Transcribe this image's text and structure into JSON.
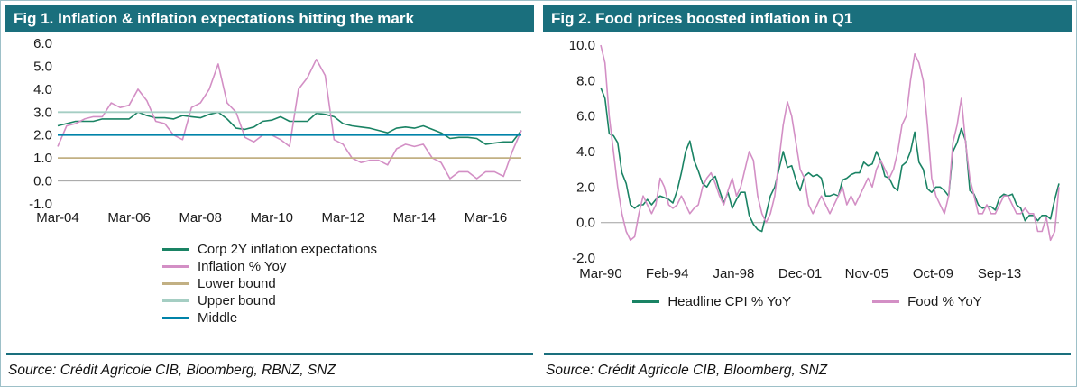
{
  "colors": {
    "header_bg": "#1a6f7d",
    "outer_border": "#9dc0c8",
    "zero_line": "#a0a0a0",
    "expectations_green": "#1a8364",
    "inflation_pink": "#d38fc5",
    "lower_bound_tan": "#c2b083",
    "upper_bound_lightgreen": "#a5cec3",
    "middle_blue": "#0083a9"
  },
  "panels": [
    {
      "title": "Fig 1. Inflation & inflation expectations hitting the mark",
      "source": "Source: Crédit Agricole CIB, Bloomberg, RBNZ, SNZ"
    },
    {
      "title": "Fig 2. Food prices boosted inflation in Q1",
      "source": "Source: Crédit Agricole CIB, Bloomberg, SNZ"
    }
  ],
  "chart_data": [
    {
      "type": "line",
      "title": "Fig 1. Inflation & inflation expectations hitting the mark",
      "xlabel": "",
      "ylabel": "",
      "grid": false,
      "zero_line": true,
      "legend_position": "bottom-vertical",
      "ylim": [
        -1.0,
        6.0
      ],
      "yticks": [
        "6.0",
        "5.0",
        "4.0",
        "3.0",
        "2.0",
        "1.0",
        "0.0",
        "-1.0"
      ],
      "n": 53,
      "x_frequency": "quarterly from Mar-04 to Mar-17",
      "xticks": [
        {
          "label": "Mar-04",
          "i": 0
        },
        {
          "label": "Mar-06",
          "i": 8
        },
        {
          "label": "Mar-08",
          "i": 16
        },
        {
          "label": "Mar-10",
          "i": 24
        },
        {
          "label": "Mar-12",
          "i": 32
        },
        {
          "label": "Mar-14",
          "i": 40
        },
        {
          "label": "Mar-16",
          "i": 48
        }
      ],
      "series": [
        {
          "name": "Corp 2Y inflation expectations",
          "color": "#1a8364",
          "values": [
            2.4,
            2.5,
            2.6,
            2.6,
            2.6,
            2.7,
            2.7,
            2.7,
            2.7,
            3.0,
            2.85,
            2.75,
            2.75,
            2.7,
            2.85,
            2.8,
            2.75,
            2.9,
            3.0,
            2.7,
            2.3,
            2.25,
            2.35,
            2.6,
            2.65,
            2.8,
            2.6,
            2.6,
            2.6,
            2.95,
            2.9,
            2.8,
            2.5,
            2.4,
            2.35,
            2.3,
            2.2,
            2.1,
            2.3,
            2.35,
            2.3,
            2.4,
            2.25,
            2.1,
            1.85,
            1.9,
            1.9,
            1.85,
            1.6,
            1.65,
            1.7,
            1.7,
            2.2
          ]
        },
        {
          "name": "Inflation % Yoy",
          "color": "#d38fc5",
          "values": [
            1.5,
            2.4,
            2.5,
            2.7,
            2.8,
            2.8,
            3.4,
            3.2,
            3.3,
            4.0,
            3.5,
            2.6,
            2.5,
            2.0,
            1.8,
            3.2,
            3.4,
            4.0,
            5.1,
            3.4,
            3.0,
            1.9,
            1.7,
            2.0,
            2.0,
            1.8,
            1.5,
            4.0,
            4.5,
            5.3,
            4.6,
            1.8,
            1.6,
            1.0,
            0.8,
            0.9,
            0.9,
            0.7,
            1.4,
            1.6,
            1.5,
            1.6,
            1.0,
            0.8,
            0.1,
            0.4,
            0.4,
            0.1,
            0.4,
            0.4,
            0.2,
            1.3,
            2.2
          ]
        },
        {
          "name": "Lower bound",
          "color": "#c2b083",
          "value": 1.0
        },
        {
          "name": "Upper bound",
          "color": "#a5cec3",
          "value": 3.0
        },
        {
          "name": "Middle",
          "color": "#0083a9",
          "value": 2.0
        }
      ]
    },
    {
      "type": "line",
      "title": "Fig 2. Food prices boosted inflation in Q1",
      "xlabel": "",
      "ylabel": "",
      "grid": false,
      "zero_line": true,
      "legend_position": "bottom-horizontal",
      "ylim": [
        -2.0,
        10.0
      ],
      "yticks": [
        "10.0",
        "8.0",
        "6.0",
        "4.0",
        "2.0",
        "0.0",
        "-2.0"
      ],
      "n": 109,
      "x_frequency": "quarterly from Mar-90 to Mar-17",
      "xticks": [
        {
          "label": "Mar-90",
          "i": 0
        },
        {
          "label": "Feb-94",
          "i": 15.67
        },
        {
          "label": "Jan-98",
          "i": 31.33
        },
        {
          "label": "Dec-01",
          "i": 47
        },
        {
          "label": "Nov-05",
          "i": 62.67
        },
        {
          "label": "Oct-09",
          "i": 78.33
        },
        {
          "label": "Sep-13",
          "i": 94
        }
      ],
      "series": [
        {
          "name": "Headline CPI % YoY",
          "color": "#1a8364",
          "values": [
            7.6,
            7.0,
            5.0,
            4.9,
            4.5,
            2.8,
            2.2,
            1.0,
            0.8,
            1.0,
            1.0,
            1.3,
            1.0,
            1.3,
            1.5,
            1.4,
            1.3,
            1.1,
            1.8,
            2.8,
            4.0,
            4.6,
            3.5,
            2.9,
            2.2,
            2.0,
            2.4,
            2.6,
            1.8,
            1.1,
            1.7,
            0.8,
            1.3,
            1.7,
            1.7,
            0.4,
            -0.1,
            -0.4,
            -0.5,
            0.5,
            1.5,
            2.0,
            3.0,
            4.0,
            3.1,
            3.2,
            2.4,
            1.8,
            2.6,
            2.8,
            2.6,
            2.7,
            2.5,
            1.5,
            1.5,
            1.6,
            1.5,
            2.4,
            2.5,
            2.7,
            2.8,
            2.8,
            3.4,
            3.2,
            3.3,
            4.0,
            3.5,
            2.6,
            2.5,
            2.0,
            1.8,
            3.2,
            3.4,
            4.0,
            5.1,
            3.4,
            3.0,
            1.9,
            1.7,
            2.0,
            2.0,
            1.8,
            1.5,
            4.0,
            4.5,
            5.3,
            4.6,
            1.8,
            1.6,
            1.0,
            0.8,
            0.9,
            0.9,
            0.7,
            1.4,
            1.6,
            1.5,
            1.6,
            1.0,
            0.8,
            0.1,
            0.4,
            0.4,
            0.1,
            0.4,
            0.4,
            0.2,
            1.3,
            2.2
          ]
        },
        {
          "name": "Food % YoY",
          "color": "#d38fc5",
          "values": [
            10.0,
            9.0,
            6.0,
            4.0,
            2.0,
            0.5,
            -0.5,
            -1.0,
            -0.8,
            0.5,
            1.5,
            1.0,
            0.5,
            1.0,
            2.5,
            2.0,
            1.0,
            0.8,
            1.0,
            1.5,
            1.0,
            0.5,
            0.8,
            1.0,
            2.0,
            2.5,
            2.8,
            2.2,
            1.5,
            1.0,
            1.8,
            2.5,
            1.5,
            2.0,
            3.0,
            4.0,
            3.5,
            1.5,
            0.5,
            0.0,
            0.5,
            1.5,
            3.5,
            5.5,
            6.8,
            6.0,
            4.5,
            3.0,
            2.5,
            1.0,
            0.5,
            1.0,
            1.5,
            1.0,
            0.5,
            1.0,
            1.5,
            2.0,
            1.0,
            1.5,
            1.0,
            1.5,
            2.0,
            2.5,
            2.0,
            3.0,
            3.5,
            3.0,
            2.5,
            3.0,
            4.0,
            5.5,
            6.0,
            8.0,
            9.5,
            9.0,
            8.0,
            5.5,
            2.5,
            1.5,
            1.0,
            0.5,
            1.5,
            4.5,
            5.5,
            7.0,
            4.5,
            2.5,
            1.5,
            0.5,
            0.5,
            1.0,
            0.5,
            0.5,
            1.0,
            1.5,
            1.5,
            1.0,
            0.5,
            0.5,
            0.8,
            0.5,
            0.5,
            -0.5,
            -0.5,
            0.3,
            -1.0,
            -0.5,
            2.0
          ]
        }
      ]
    }
  ]
}
